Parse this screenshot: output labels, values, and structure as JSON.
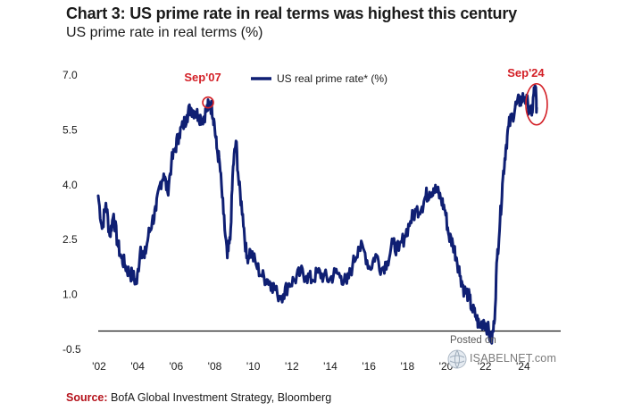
{
  "header": {
    "title": "Chart 3: US prime rate in real terms was highest this century",
    "subtitle": "US prime rate in real terms (%)"
  },
  "footer": {
    "source_label": "Source:",
    "source_text": "BofA Global Investment Strategy, Bloomberg"
  },
  "watermark": {
    "posted": "Posted on",
    "site": "ISABELNET.com"
  },
  "colors": {
    "series": "#0f1f73",
    "annotation": "#d31f26",
    "zero_line": "#1a1a1a",
    "text": "#1a1a1a"
  },
  "chart_data": {
    "type": "line",
    "title": "Chart 3: US prime rate in real terms was highest this century",
    "subtitle": "US prime rate in real terms (%)",
    "xlabel": "",
    "ylabel": "",
    "xlim": [
      2002.0,
      2026.0
    ],
    "ylim": [
      -0.5,
      7.0
    ],
    "grid": false,
    "legend": {
      "placement": "top-center",
      "entries": [
        "US real prime rate* (%)"
      ]
    },
    "y_ticks": [
      {
        "value": 7.0,
        "label": "7.0"
      },
      {
        "value": 5.5,
        "label": "5.5"
      },
      {
        "value": 4.0,
        "label": "4.0"
      },
      {
        "value": 2.5,
        "label": "2.5"
      },
      {
        "value": 1.0,
        "label": "1.0"
      },
      {
        "value": -0.5,
        "label": "-0.5"
      }
    ],
    "x_ticks": [
      {
        "value": 2002,
        "label": "'02"
      },
      {
        "value": 2004,
        "label": "'04"
      },
      {
        "value": 2006,
        "label": "'06"
      },
      {
        "value": 2008,
        "label": "'08"
      },
      {
        "value": 2010,
        "label": "'10"
      },
      {
        "value": 2012,
        "label": "'12"
      },
      {
        "value": 2014,
        "label": "'14"
      },
      {
        "value": 2016,
        "label": "'16"
      },
      {
        "value": 2018,
        "label": "'18"
      },
      {
        "value": 2020,
        "label": "'20"
      },
      {
        "value": 2022,
        "label": "'22"
      },
      {
        "value": 2024,
        "label": "'24"
      }
    ],
    "reference_line": {
      "y": 0.0
    },
    "series": [
      {
        "name": "US real prime rate* (%)",
        "x": [
          2002.0,
          2002.2,
          2002.4,
          2002.6,
          2002.8,
          2003.0,
          2003.2,
          2003.4,
          2003.6,
          2003.8,
          2004.0,
          2004.2,
          2004.4,
          2004.6,
          2004.8,
          2005.0,
          2005.2,
          2005.4,
          2005.6,
          2005.8,
          2006.0,
          2006.2,
          2006.4,
          2006.6,
          2006.8,
          2007.0,
          2007.2,
          2007.4,
          2007.6,
          2007.75,
          2007.9,
          2008.0,
          2008.15,
          2008.3,
          2008.5,
          2008.7,
          2008.85,
          2009.0,
          2009.15,
          2009.3,
          2009.5,
          2009.7,
          2009.9,
          2010.2,
          2010.5,
          2010.8,
          2011.0,
          2011.3,
          2011.6,
          2011.9,
          2012.2,
          2012.5,
          2012.8,
          2013.1,
          2013.4,
          2013.7,
          2014.0,
          2014.3,
          2014.6,
          2014.9,
          2015.2,
          2015.5,
          2015.8,
          2016.1,
          2016.4,
          2016.7,
          2017.0,
          2017.3,
          2017.6,
          2017.9,
          2018.2,
          2018.5,
          2018.8,
          2019.0,
          2019.2,
          2019.4,
          2019.6,
          2019.8,
          2020.0,
          2020.2,
          2020.4,
          2020.6,
          2020.8,
          2021.0,
          2021.2,
          2021.4,
          2021.6,
          2021.8,
          2022.0,
          2022.2,
          2022.4,
          2022.55,
          2022.7,
          2022.85,
          2023.0,
          2023.15,
          2023.3,
          2023.5,
          2023.7,
          2023.9,
          2024.1,
          2024.3,
          2024.5,
          2024.6,
          2024.7,
          2024.75
        ],
        "values": [
          3.7,
          2.8,
          3.5,
          2.6,
          3.2,
          2.4,
          2.0,
          1.8,
          1.6,
          1.5,
          1.3,
          2.3,
          2.0,
          2.6,
          3.0,
          3.3,
          4.0,
          4.3,
          3.8,
          4.6,
          5.0,
          5.4,
          5.6,
          5.9,
          6.1,
          6.0,
          5.9,
          5.8,
          6.0,
          6.2,
          6.1,
          5.8,
          5.0,
          4.6,
          3.2,
          2.0,
          2.5,
          4.5,
          5.2,
          4.0,
          3.2,
          2.0,
          2.2,
          1.8,
          1.5,
          1.4,
          1.3,
          1.0,
          1.0,
          1.3,
          1.4,
          1.6,
          1.5,
          1.4,
          1.6,
          1.5,
          1.4,
          1.6,
          1.5,
          1.3,
          1.8,
          2.3,
          2.2,
          1.7,
          2.1,
          1.7,
          1.9,
          2.4,
          2.2,
          2.6,
          3.0,
          3.3,
          3.4,
          3.7,
          3.8,
          3.9,
          3.8,
          3.6,
          3.3,
          2.6,
          2.4,
          2.0,
          1.5,
          1.1,
          1.0,
          0.6,
          0.4,
          0.1,
          0.3,
          0.1,
          -0.3,
          0.2,
          2.0,
          3.0,
          4.2,
          5.0,
          5.6,
          5.9,
          6.2,
          6.3,
          6.4,
          6.2,
          5.9,
          6.5,
          6.6,
          6.1
        ]
      }
    ],
    "annotations": [
      {
        "label": "Sep'07",
        "x": 2007.7,
        "y": 6.25
      },
      {
        "label": "Sep'24",
        "x": 2024.7,
        "y": 6.2
      }
    ]
  }
}
